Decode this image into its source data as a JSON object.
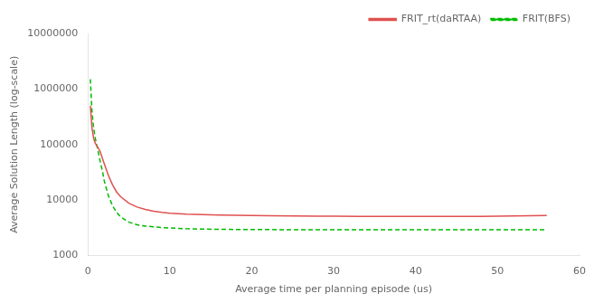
{
  "chart_data": {
    "type": "line",
    "xlabel": "Average time per planning episode (us)",
    "ylabel": "Average Solution Length (log-scale)",
    "log": "y",
    "xlim": [
      0,
      60
    ],
    "ylim": [
      1000,
      10000000
    ],
    "xticks": [
      0,
      10,
      20,
      30,
      40,
      50,
      60
    ],
    "yticks": [
      1000,
      10000,
      100000,
      1000000,
      10000000
    ],
    "grid": false,
    "legend": "upper right",
    "x": [
      0.3,
      0.5,
      0.7,
      0.9,
      1.1,
      1.3,
      1.5,
      1.8,
      2.0,
      2.5,
      3.0,
      3.5,
      4.0,
      5.0,
      6.0,
      7.0,
      8.0,
      9.0,
      10.0,
      12.0,
      14.0,
      16.0,
      18.0,
      20.0,
      22.0,
      25.0,
      28.0,
      30.0,
      33.0,
      36.0,
      40.0,
      44.0,
      48.0,
      52.0,
      56.0
    ],
    "series": [
      {
        "name": "FRIT_rt(daRTAA)",
        "color": "#e05050",
        "line_style": "solid",
        "values": [
          500000,
          200000,
          130000,
          105000,
          95000,
          85000,
          75000,
          55000,
          45000,
          28000,
          19000,
          14000,
          11500,
          8800,
          7500,
          6800,
          6300,
          6000,
          5800,
          5600,
          5500,
          5400,
          5350,
          5300,
          5250,
          5200,
          5150,
          5150,
          5100,
          5100,
          5100,
          5100,
          5100,
          5200,
          5300
        ]
      },
      {
        "name": "FRIT(BFS)",
        "color": "#00bb00",
        "line_style": "dashed",
        "values": [
          1500000,
          400000,
          200000,
          130000,
          95000,
          70000,
          50000,
          32000,
          22000,
          12000,
          8000,
          6000,
          5000,
          4000,
          3600,
          3400,
          3300,
          3200,
          3150,
          3050,
          3000,
          2980,
          2960,
          2950,
          2940,
          2930,
          2920,
          2915,
          2910,
          2910,
          2910,
          2910,
          2910,
          2910,
          2910
        ]
      }
    ]
  }
}
